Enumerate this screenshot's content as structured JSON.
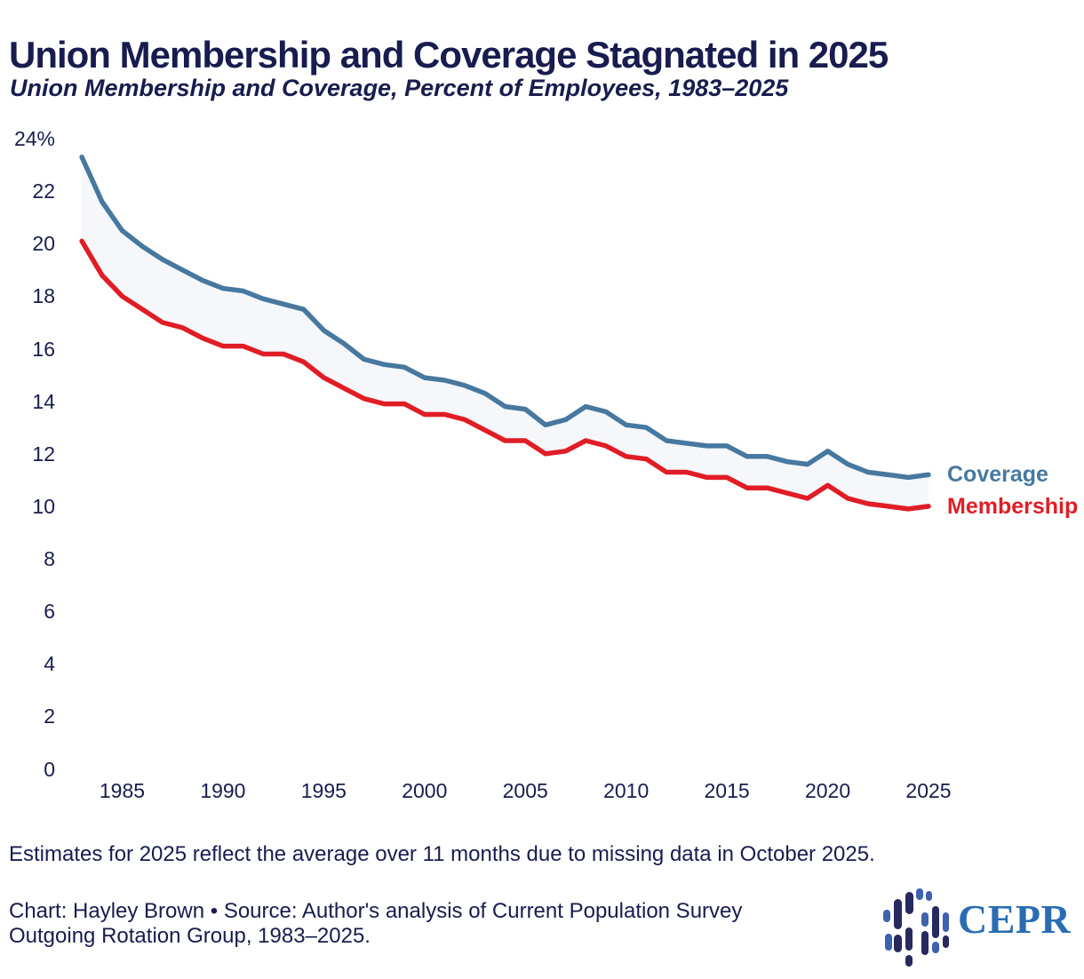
{
  "header": {
    "title": "Union Membership and Coverage Stagnated in 2025",
    "subtitle": "Union Membership and Coverage, Percent of Employees, 1983–2025"
  },
  "chart_data": {
    "type": "line",
    "title": "Union Membership and Coverage Stagnated in 2025",
    "subtitle": "Union Membership and Coverage, Percent of Employees, 1983–2025",
    "xlabel": "",
    "ylabel": "Percent of Employees",
    "xlim": [
      1983,
      2025
    ],
    "ylim": [
      0,
      24
    ],
    "grid": false,
    "legend_position": "line-end-right",
    "area_fill_between_series": "#f5f7fa",
    "x": [
      1983,
      1984,
      1985,
      1986,
      1987,
      1988,
      1989,
      1990,
      1991,
      1992,
      1993,
      1994,
      1995,
      1996,
      1997,
      1998,
      1999,
      2000,
      2001,
      2002,
      2003,
      2004,
      2005,
      2006,
      2007,
      2008,
      2009,
      2010,
      2011,
      2012,
      2013,
      2014,
      2015,
      2016,
      2017,
      2018,
      2019,
      2020,
      2021,
      2022,
      2023,
      2024,
      2025
    ],
    "series": [
      {
        "name": "Coverage",
        "color": "#47789f",
        "values": [
          23.3,
          21.6,
          20.5,
          19.9,
          19.4,
          19.0,
          18.6,
          18.3,
          18.2,
          17.9,
          17.7,
          17.5,
          16.7,
          16.2,
          15.6,
          15.4,
          15.3,
          14.9,
          14.8,
          14.6,
          14.3,
          13.8,
          13.7,
          13.1,
          13.3,
          13.8,
          13.6,
          13.1,
          13.0,
          12.5,
          12.4,
          12.3,
          12.3,
          11.9,
          11.9,
          11.7,
          11.6,
          12.1,
          11.6,
          11.3,
          11.2,
          11.1,
          11.2
        ]
      },
      {
        "name": "Membership",
        "color": "#e01d25",
        "values": [
          20.1,
          18.8,
          18.0,
          17.5,
          17.0,
          16.8,
          16.4,
          16.1,
          16.1,
          15.8,
          15.8,
          15.5,
          14.9,
          14.5,
          14.1,
          13.9,
          13.9,
          13.5,
          13.5,
          13.3,
          12.9,
          12.5,
          12.5,
          12.0,
          12.1,
          12.5,
          12.3,
          11.9,
          11.8,
          11.3,
          11.3,
          11.1,
          11.1,
          10.7,
          10.7,
          10.5,
          10.3,
          10.8,
          10.3,
          10.1,
          10.0,
          9.9,
          10.0
        ]
      }
    ],
    "yticks": [
      24,
      22,
      20,
      18,
      16,
      14,
      12,
      10,
      8,
      6,
      4,
      2,
      0
    ],
    "ytick_labels": [
      "24%",
      "22",
      "20",
      "18",
      "16",
      "14",
      "12",
      "10",
      "8",
      "6",
      "4",
      "2",
      "0"
    ],
    "xticks": [
      1985,
      1990,
      1995,
      2000,
      2005,
      2010,
      2015,
      2020,
      2025
    ],
    "xtick_labels": [
      "1985",
      "1990",
      "1995",
      "2000",
      "2005",
      "2010",
      "2015",
      "2020",
      "2025"
    ]
  },
  "footer": {
    "note": "Estimates for 2025 reflect the average over 11 months due to missing data in October 2025.",
    "credit_lines": [
      "Chart: Hayley Brown • Source: Author's analysis of Current Population Survey",
      "Outgoing Rotation Group, 1983–2025."
    ],
    "logo_text": "CEPR"
  },
  "colors": {
    "text_navy": "#181c4e",
    "coverage_blue": "#47789f",
    "membership_red": "#e01d25",
    "band_fill": "#f5f7fa",
    "wordmark_blue": "#2a6cb3",
    "logo_navy": "#272a5f",
    "logo_blue": "#3d62ae"
  }
}
